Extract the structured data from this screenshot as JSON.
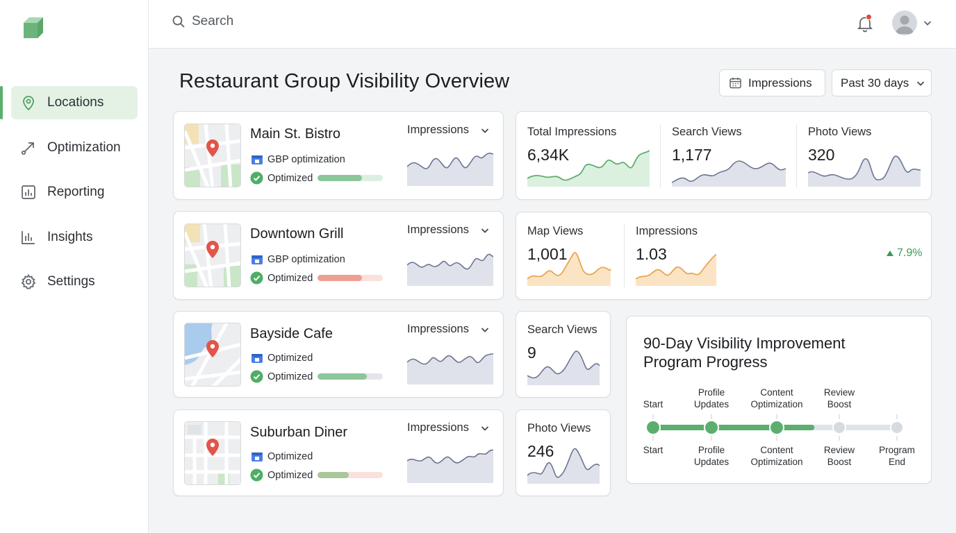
{
  "sidebar": {
    "items": [
      {
        "label": "Locations"
      },
      {
        "label": "Optimization"
      },
      {
        "label": "Reporting"
      },
      {
        "label": "Insights"
      },
      {
        "label": "Settings"
      }
    ]
  },
  "topbar": {
    "search_placeholder": "Search"
  },
  "page": {
    "title": "Restaurant Group Visibility Overview",
    "metric_button": "Impressions",
    "range_button": "Past 30 days"
  },
  "locations": [
    {
      "name": "Main St. Bistro",
      "tag": "GBP optimization",
      "status": "Optimized",
      "metric": "Impressions",
      "progress": 0.68,
      "progress_color": "#8cc79a",
      "track_color": "#dcefe0"
    },
    {
      "name": "Downtown Grill",
      "tag": "GBP optimization",
      "status": "Optimized",
      "metric": "Impressions",
      "progress": 0.68,
      "progress_color": "#ef9e92",
      "track_color": "#fbe0db"
    },
    {
      "name": "Bayside Cafe",
      "tag": "Optimized",
      "status": "Optimized",
      "metric": "Impressions",
      "progress": 0.75,
      "progress_color": "#8cc79a",
      "track_color": "#e3e5ea"
    },
    {
      "name": "Suburban Diner",
      "tag": "Optimized",
      "status": "Optimized",
      "metric": "Impressions",
      "progress": 0.48,
      "progress_color": "#a9c79a",
      "track_color": "#fbe0db"
    }
  ],
  "summary": {
    "total_impressions": {
      "label": "Total Impressions",
      "value": "6,34K"
    },
    "search_views": {
      "label": "Search Views",
      "value": "1,177"
    },
    "photo_views": {
      "label": "Photo Views",
      "value": "320"
    }
  },
  "maps_card": {
    "map_views": {
      "label": "Map Views",
      "value": "1,001"
    },
    "impressions": {
      "label": "Impressions",
      "value": "1.03"
    },
    "delta": "7.9%"
  },
  "small_cards": {
    "search_views": {
      "label": "Search Views",
      "value": "9"
    },
    "photo_views": {
      "label": "Photo Views",
      "value": "246"
    }
  },
  "program": {
    "title": "90-Day Visibility Improvement Program Progress",
    "steps": [
      {
        "label": "Start",
        "done": true
      },
      {
        "label": "Profile Updates",
        "done": true
      },
      {
        "label": "Content Optimization",
        "done": true
      },
      {
        "label": "Review Boost",
        "done": false
      },
      {
        "label": "Program End",
        "done": false
      }
    ],
    "progress": 0.65
  },
  "colors": {
    "accent_green": "#5cae6e",
    "accent_orange": "#e7a64f",
    "neutral_series": "#6b7592"
  }
}
